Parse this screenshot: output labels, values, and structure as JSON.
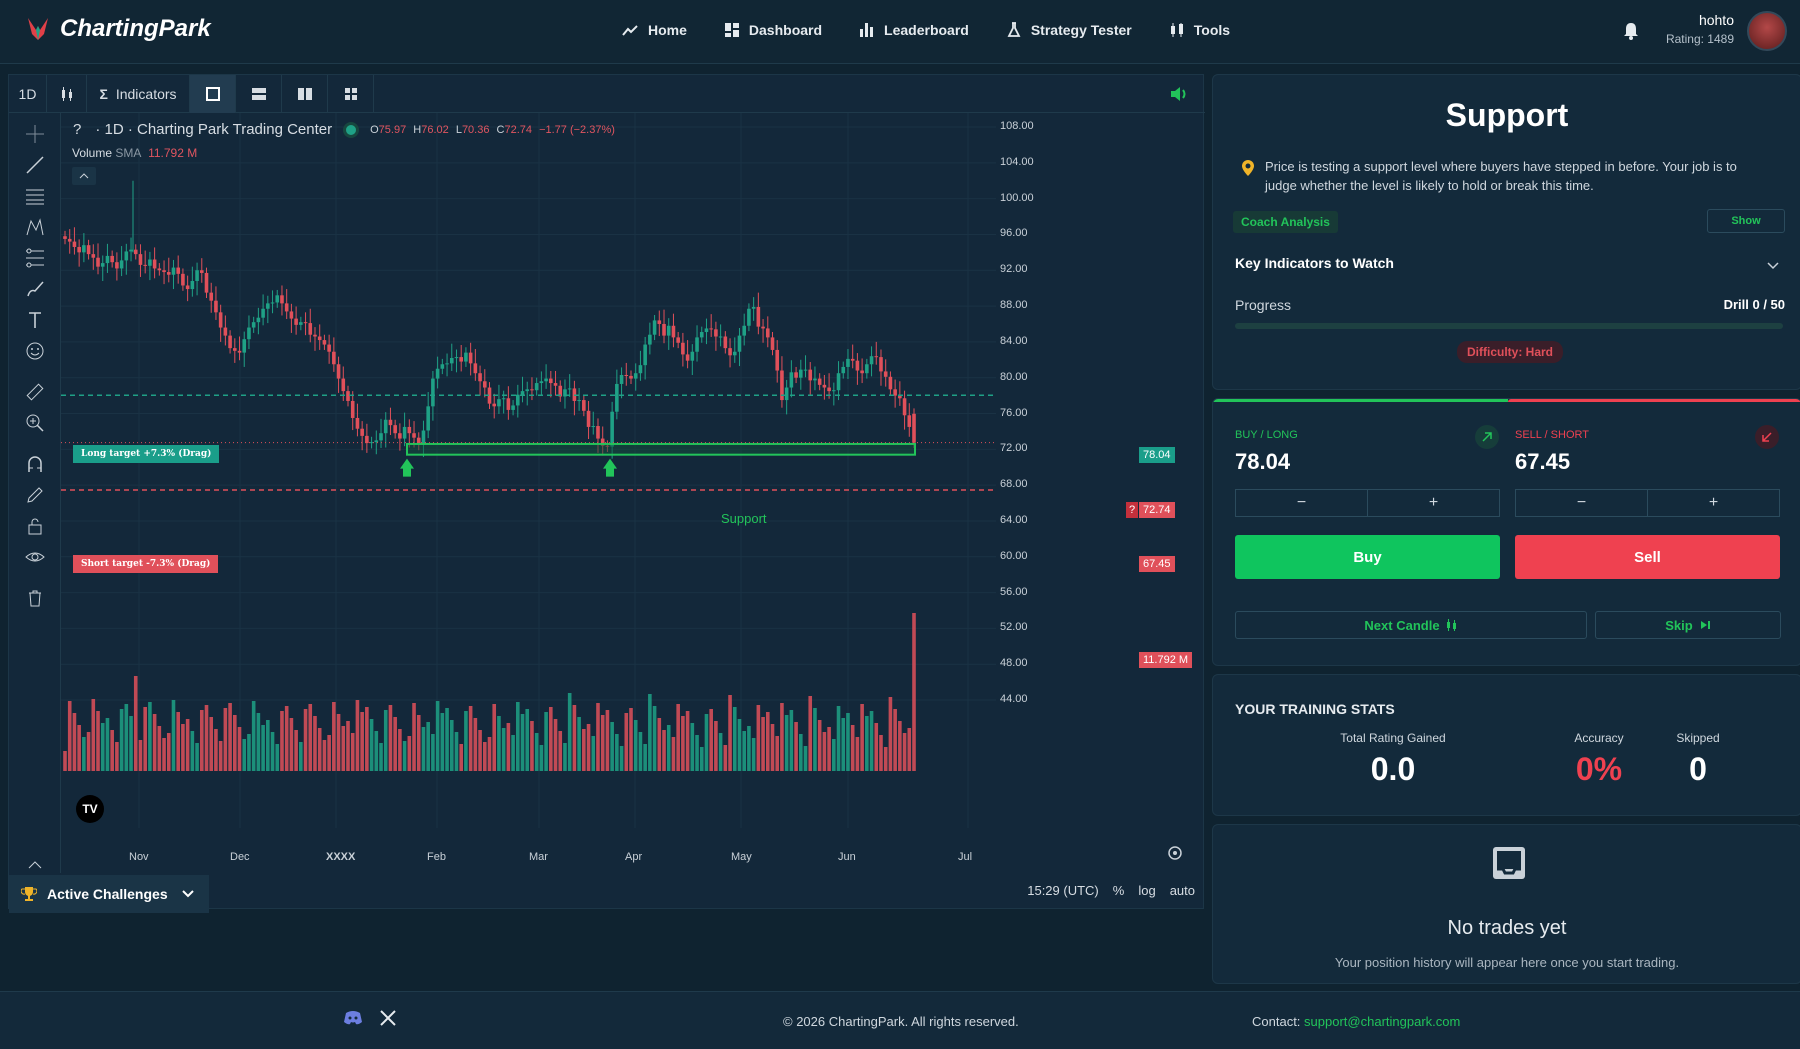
{
  "brand": {
    "name": "ChartingPark"
  },
  "nav": {
    "home": "Home",
    "dashboard": "Dashboard",
    "leaderboard": "Leaderboard",
    "strategy_tester": "Strategy Tester",
    "tools": "Tools"
  },
  "user": {
    "name": "hohto",
    "rating": "Rating: 1489"
  },
  "toolbar": {
    "timeframe": "1D",
    "indicators": "Indicators"
  },
  "chart": {
    "symbol": "?",
    "title": "· 1D · Charting Park Trading Center",
    "ohlc": {
      "o_label": "O",
      "o": "75.97",
      "h_label": "H",
      "h": "76.02",
      "l_label": "L",
      "l": "70.36",
      "c_label": "C",
      "c": "72.74",
      "change": "−1.77 (−2.37%)"
    },
    "volume": {
      "label": "Volume",
      "sma": "SMA",
      "value": "11.792 M"
    },
    "long_target": "Long target +7.3% (Drag)",
    "short_target": "Short target -7.3% (Drag)",
    "support_label": "Support",
    "price_long": "78.04",
    "price_current": "72.74",
    "price_current_tag": "?",
    "price_short": "67.45",
    "volume_tag": "11.792 M",
    "time": "15:29 (UTC)",
    "bottom": {
      "pct": "%",
      "log": "log",
      "auto": "auto"
    },
    "tv_logo": "TV",
    "colors": {
      "up": "#1fa186",
      "down": "#e0505a",
      "support": "#22c45a"
    }
  },
  "chart_data": {
    "type": "candlestick",
    "y_ticks": [
      "108.00",
      "104.00",
      "100.00",
      "96.00",
      "92.00",
      "88.00",
      "84.00",
      "80.00",
      "76.00",
      "72.00",
      "68.00",
      "64.00",
      "60.00",
      "56.00",
      "52.00",
      "48.00",
      "44.00"
    ],
    "x_ticks": [
      "Nov",
      "Dec",
      "XXXX",
      "Feb",
      "Mar",
      "Apr",
      "May",
      "Jun",
      "Jul"
    ],
    "ylim": [
      44,
      108
    ],
    "support_level": [
      71.4,
      72.6
    ],
    "long_target": 78.04,
    "short_target": 67.45,
    "last_close": 72.74,
    "closes": [
      95.5,
      95.2,
      94.6,
      94,
      94.8,
      93.8,
      93.4,
      92.4,
      92.8,
      93.6,
      92.9,
      92.2,
      93.1,
      94.1,
      94.3,
      93.8,
      92.6,
      92.5,
      93.2,
      92.2,
      92,
      91.8,
      91.5,
      92.3,
      91.6,
      90.3,
      89.9,
      90.8,
      92,
      91.7,
      89.5,
      88.6,
      87.3,
      85.6,
      84.7,
      83.3,
      83,
      82.8,
      84.3,
      85.6,
      86.2,
      86.7,
      87.7,
      88.3,
      88.4,
      89.2,
      88.3,
      87.4,
      86.6,
      85.9,
      86.2,
      86.1,
      84.8,
      84.6,
      84.2,
      83.7,
      82.9,
      81.5,
      79.9,
      78.5,
      77.4,
      75.5,
      74.3,
      73.5,
      72.7,
      72.8,
      73,
      73.8,
      75.3,
      74.7,
      73.8,
      73.2,
      74.5,
      73.8,
      73.3,
      72.5,
      74.1,
      76.8,
      79.9,
      81,
      81.5,
      81.6,
      82.2,
      82.3,
      81.8,
      82.8,
      81.6,
      80.5,
      79.6,
      78.9,
      77.1,
      76.8,
      77.6,
      77.7,
      76.4,
      76.9,
      78.1,
      78.5,
      78.7,
      78.6,
      79.4,
      79.6,
      79.9,
      79.4,
      79.1,
      77.9,
      78.7,
      78.8,
      77.4,
      77.5,
      76.3,
      74.5,
      74.6,
      73.2,
      72.4,
      72.3,
      76.2,
      79.3,
      80.3,
      80.2,
      79.9,
      80.5,
      81.4,
      83.7,
      84.8,
      86.4,
      86,
      84.7,
      85.8,
      84.5,
      83.9,
      82.6,
      81.9,
      82.9,
      84.5,
      85.1,
      85.5,
      85.4,
      84.6,
      84.6,
      83.3,
      82.5,
      82.9,
      84.7,
      85.8,
      87.7,
      87.9,
      85.7,
      85.5,
      84.5,
      83.1,
      80.8,
      77.5,
      78.9,
      80.6,
      80,
      80.9,
      80.9,
      79.7,
      79.9,
      79.2,
      78.9,
      78.5,
      78.6,
      80.5,
      81.2,
      82.1,
      81.9,
      80.8,
      80.5,
      81.5,
      82.4,
      82.3,
      80.7,
      80.1,
      78.7,
      78,
      77.7,
      75.8,
      74.5,
      72.74
    ]
  },
  "support_card": {
    "title": "Support",
    "description": "Price is testing a support level where buyers have stepped in before. Your job is to judge whether the level is likely to hold or break this time.",
    "coach": "Coach Analysis",
    "show": "Show",
    "key_indicators": "Key Indicators to Watch",
    "progress_label": "Progress",
    "progress_value": "Drill 0 / 50",
    "progress_fraction": 0,
    "difficulty": "Difficulty: Hard"
  },
  "trade": {
    "buy_label": "BUY / LONG",
    "buy_price": "78.04",
    "sell_label": "SELL / SHORT",
    "sell_price": "67.45",
    "minus": "−",
    "plus": "+",
    "buy_button": "Buy",
    "sell_button": "Sell",
    "next_candle": "Next Candle",
    "skip": "Skip",
    "colors": {
      "buy": "#0fc55e",
      "sell": "#ef4150"
    }
  },
  "stats": {
    "title": "YOUR TRAINING STATS",
    "items": [
      {
        "label": "Total Rating Gained",
        "value": "0.0"
      },
      {
        "label": "Accuracy",
        "value": "0%"
      },
      {
        "label": "Skipped",
        "value": "0"
      }
    ]
  },
  "history": {
    "title": "No trades yet",
    "subtitle": "Your position history will appear here once you start trading."
  },
  "challenges": {
    "label": "Active Challenges"
  },
  "footer": {
    "copyright": "© 2026 ChartingPark. All rights reserved.",
    "contact_label": "Contact:",
    "email": "support@chartingpark.com"
  }
}
